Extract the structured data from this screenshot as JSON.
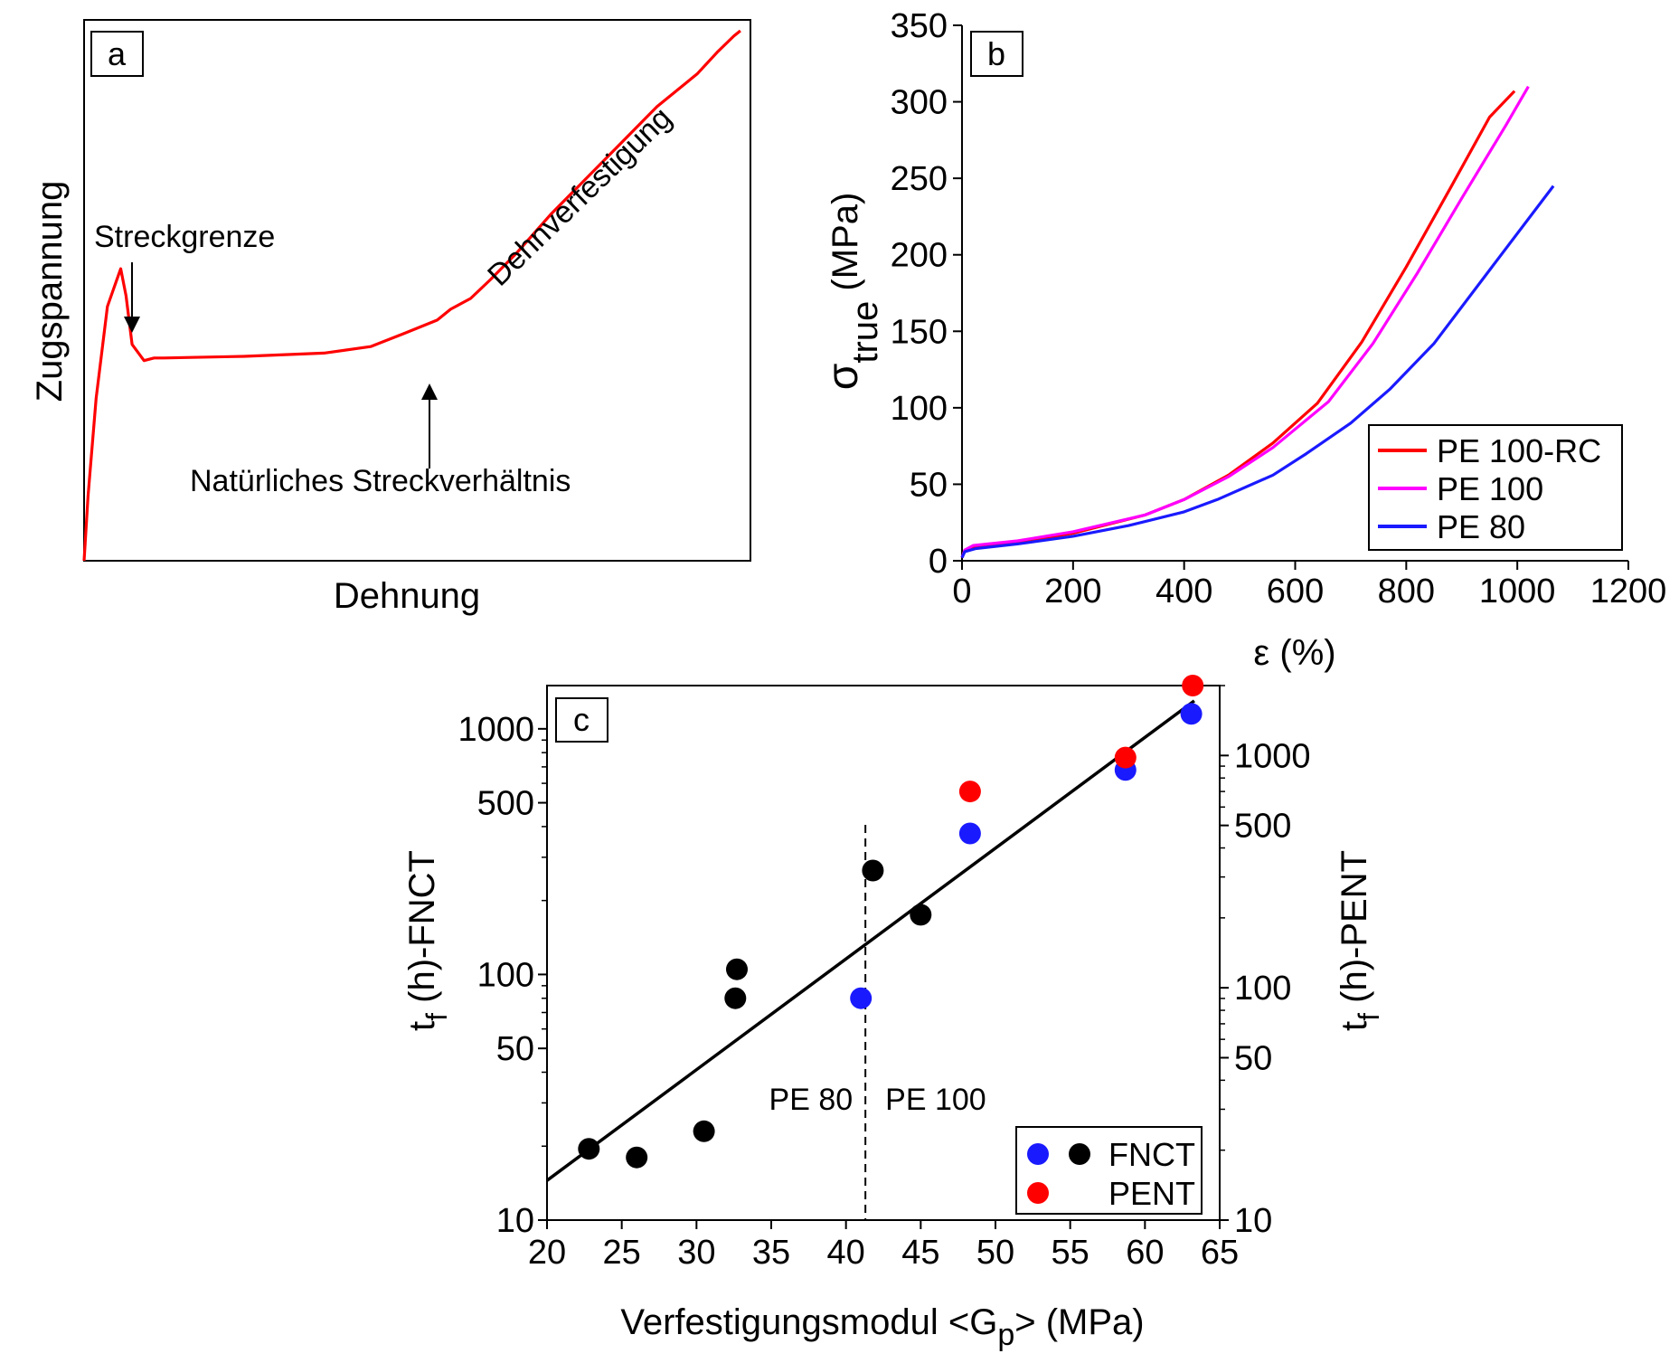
{
  "colors": {
    "red": "#ff0000",
    "magenta": "#ff00ff",
    "blue": "#1a1aff",
    "black": "#000000"
  },
  "chart_data": [
    {
      "panel": "a",
      "type": "line",
      "xlabel": "Dehnung",
      "ylabel": "Zugspannung",
      "axes_ticks": false,
      "series": [
        {
          "color": "#ff0000",
          "x": [
            0,
            0.6,
            1.8,
            3.5,
            5.5,
            6.3,
            7.2,
            9.0,
            10.5,
            12.0,
            16,
            24,
            36,
            43,
            48,
            53,
            55,
            58,
            61,
            65,
            70,
            78,
            86,
            92,
            95,
            97.5,
            98.5
          ],
          "y": [
            0,
            12,
            30,
            47,
            54,
            49,
            40,
            37,
            37.5,
            37.5,
            37.6,
            37.8,
            38.4,
            39.6,
            42,
            44.5,
            46.5,
            48.5,
            52,
            57,
            64,
            74,
            84,
            90,
            94,
            97,
            98
          ]
        }
      ],
      "annotations": [
        {
          "text": "Streckgrenze",
          "kind": "arrow-down"
        },
        {
          "text": "Natürliches Streckverhältnis",
          "kind": "arrow-up"
        },
        {
          "text": "Dehnverfestigung",
          "kind": "rotated"
        }
      ]
    },
    {
      "panel": "b",
      "type": "line",
      "xlabel": "ε (%)",
      "ylabel": "σ",
      "ylabel_sub": "true",
      "ylabel_unit": " (MPa)",
      "xlim": [
        0,
        1200
      ],
      "ylim": [
        0,
        350
      ],
      "xticks": [
        "0",
        "200",
        "400",
        "600",
        "800",
        "1000",
        "1200"
      ],
      "yticks": [
        "0",
        "50",
        "100",
        "150",
        "200",
        "250",
        "300",
        "350"
      ],
      "legend_position": "bottom-right",
      "series": [
        {
          "name": "PE 100-RC",
          "color": "#ff0000",
          "x": [
            0,
            5,
            20,
            100,
            200,
            330,
            400,
            480,
            560,
            640,
            720,
            800,
            880,
            950,
            995
          ],
          "y": [
            2,
            7,
            9,
            12,
            18,
            30,
            40,
            56,
            77,
            103,
            143,
            192,
            244,
            290,
            307
          ]
        },
        {
          "name": "PE 100",
          "color": "#ff00ff",
          "x": [
            0,
            5,
            20,
            100,
            200,
            330,
            400,
            480,
            560,
            660,
            740,
            820,
            900,
            980,
            1020
          ],
          "y": [
            2,
            7,
            10,
            13,
            19,
            30,
            40,
            55,
            74,
            104,
            142,
            188,
            237,
            285,
            310
          ]
        },
        {
          "name": "PE 80",
          "color": "#1a1aff",
          "x": [
            0,
            5,
            25,
            100,
            200,
            300,
            400,
            460,
            560,
            620,
            700,
            770,
            850,
            950,
            1065
          ],
          "y": [
            2,
            6,
            8,
            11,
            16,
            23,
            32,
            40,
            56,
            70,
            90,
            112,
            142,
            190,
            245
          ]
        }
      ]
    },
    {
      "panel": "c",
      "type": "scatter",
      "xlabel": "Verfestigungsmodul <G",
      "xlabel_sub": "p",
      "xlabel_tail": "> (MPa)",
      "ylabel_left": "t",
      "ylabel_left_sub": "f",
      "ylabel_left_tail": " (h)-FNCT",
      "ylabel_right": "t",
      "ylabel_right_sub": "f",
      "ylabel_right_tail": " (h)-PENT",
      "xlim": [
        20,
        65
      ],
      "ylim_left": [
        10,
        1500
      ],
      "ylim_right": [
        10,
        2000
      ],
      "y_scale": "log",
      "xticks": [
        "20",
        "25",
        "30",
        "35",
        "40",
        "45",
        "50",
        "55",
        "60",
        "65"
      ],
      "yticks_left": [
        "10",
        "50",
        "100",
        "500",
        "1000"
      ],
      "yticks_right": [
        "10",
        "50",
        "100",
        "500",
        "1000"
      ],
      "divider_x": 41.3,
      "region_labels": [
        "PE 80",
        "PE 100"
      ],
      "fit_line": {
        "x": [
          20,
          63.3
        ],
        "y_left": [
          14.5,
          1300
        ]
      },
      "series": [
        {
          "name": "FNCT",
          "color": "#000000",
          "axis": "left",
          "x": [
            22.8,
            26.0,
            30.5,
            32.6,
            32.7,
            41.8,
            45.0
          ],
          "y": [
            19.5,
            18,
            23,
            80,
            105,
            265,
            175
          ]
        },
        {
          "name": "FNCT",
          "color": "#1a1aff",
          "axis": "left",
          "x": [
            41.0,
            48.3,
            58.7,
            63.1
          ],
          "y": [
            80,
            375,
            680,
            1150
          ]
        },
        {
          "name": "PENT",
          "color": "#ff0000",
          "axis": "right",
          "x": [
            48.3,
            58.7,
            63.2
          ],
          "y": [
            700,
            980,
            2000
          ]
        }
      ],
      "legend": [
        {
          "label": "FNCT",
          "colors": [
            "#1a1aff",
            "#000000"
          ]
        },
        {
          "label": "PENT",
          "colors": [
            "#ff0000"
          ]
        }
      ]
    }
  ]
}
